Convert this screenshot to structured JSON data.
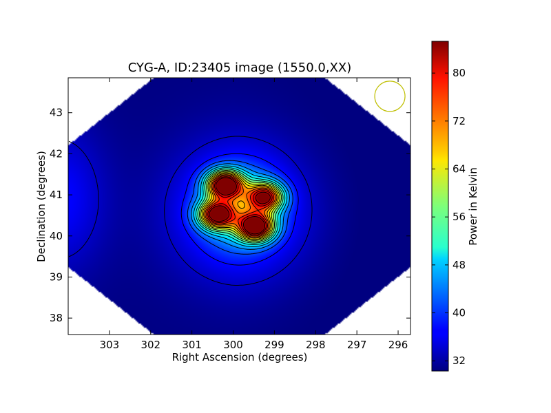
{
  "chart_data": {
    "type": "heatmap",
    "title": "CYG-A, ID:23405 image (1550.0,XX)",
    "xlabel": "Right Ascension (degrees)",
    "ylabel": "Declination (degrees)",
    "xlim": [
      304.0,
      295.7
    ],
    "ylim": [
      37.6,
      43.85
    ],
    "x_ticks": [
      303,
      302,
      301,
      300,
      299,
      298,
      297,
      296
    ],
    "y_ticks": [
      38,
      39,
      40,
      41,
      42,
      43
    ],
    "colorbar": {
      "label": "Power in Kelvin",
      "range": [
        30.3,
        85.3
      ],
      "ticks": [
        32,
        40,
        48,
        56,
        64,
        72,
        80
      ],
      "colormap": "jet"
    },
    "sources": [
      {
        "ra": 300.2,
        "dec": 41.25,
        "peak": 85
      },
      {
        "ra": 299.45,
        "dec": 40.22,
        "peak": 83
      },
      {
        "ra": 300.4,
        "dec": 40.52,
        "peak": 80
      },
      {
        "ra": 299.22,
        "dec": 40.95,
        "peak": 76
      }
    ],
    "beam": {
      "ra": 296.2,
      "dec": 43.4,
      "color": "#bfbf00"
    },
    "grid": false
  }
}
